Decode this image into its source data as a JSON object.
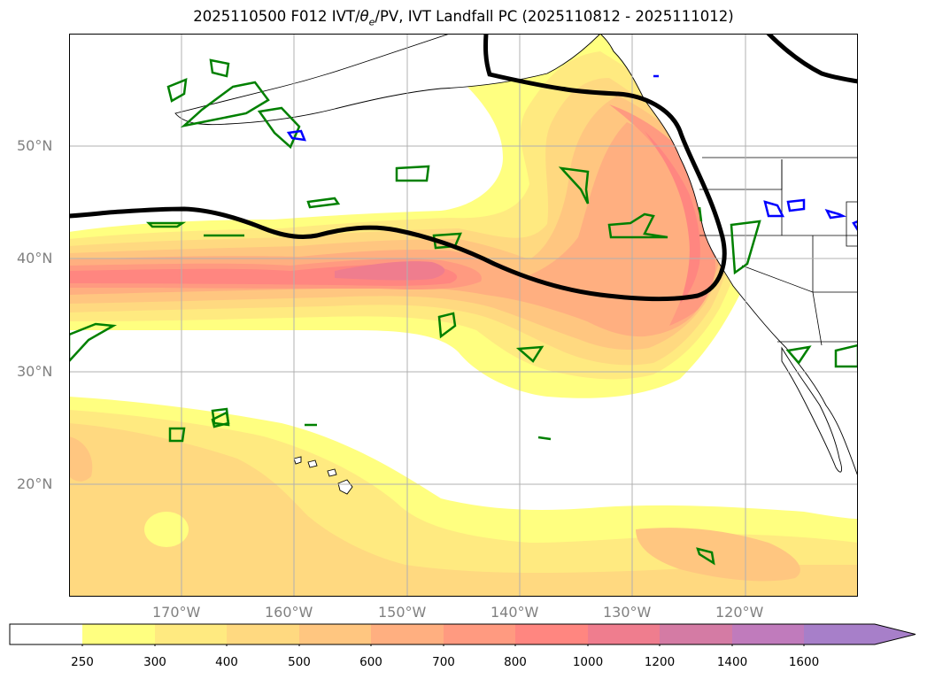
{
  "title": {
    "prefix": "2025110500 F012 IVT/",
    "theta": "θ",
    "theta_sub": "e",
    "suffix": "/PV, IVT Landfall PC (2025110812 - 2025111012)"
  },
  "map": {
    "lat_range": [
      10,
      60
    ],
    "lon_range": [
      -180,
      -110
    ],
    "grid": true,
    "lat_ticks": [
      {
        "value": 50,
        "label": "50°N"
      },
      {
        "value": 40,
        "label": "40°N"
      },
      {
        "value": 30,
        "label": "30°N"
      },
      {
        "value": 20,
        "label": "20°N"
      }
    ],
    "lon_ticks": [
      {
        "value": -170,
        "label": "170°W"
      },
      {
        "value": -160,
        "label": "160°W"
      },
      {
        "value": -150,
        "label": "150°W"
      },
      {
        "value": -140,
        "label": "140°W"
      },
      {
        "value": -130,
        "label": "130°W"
      },
      {
        "value": -120,
        "label": "120°W"
      }
    ]
  },
  "colorbar": {
    "levels": [
      "250",
      "300",
      "400",
      "500",
      "600",
      "700",
      "800",
      "1000",
      "1200",
      "1400",
      "1600"
    ],
    "colors": [
      "#ffffff",
      "#ffff80",
      "#ffea80",
      "#ffd980",
      "#ffc680",
      "#ffaf80",
      "#ff9a80",
      "#ff8680",
      "#ef7d8e",
      "#d47ba4",
      "#c07bbc",
      "#a77fc9"
    ],
    "extend": "max"
  },
  "colors": {
    "ivt_line": "#000000",
    "pv_contour": "#008000",
    "negative_contour": "#0000ff",
    "coastline": "#000000",
    "gridline": "#b0b0b0"
  }
}
